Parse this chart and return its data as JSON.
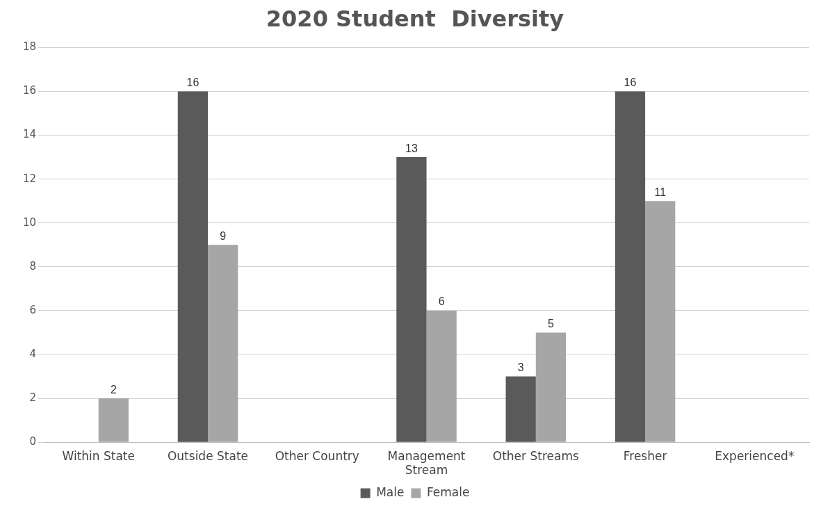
{
  "chart_data": {
    "type": "bar",
    "title": "2020 Student  Diversity",
    "categories": [
      [
        "Within State"
      ],
      [
        "Outside State"
      ],
      [
        "Other Country"
      ],
      [
        "Management",
        "Stream"
      ],
      [
        "Other Streams"
      ],
      [
        "Fresher"
      ],
      [
        "Experienced*"
      ]
    ],
    "series": [
      {
        "name": "Male",
        "color": "#5a5a5a",
        "values": [
          null,
          16,
          null,
          13,
          3,
          16,
          null
        ]
      },
      {
        "name": "Female",
        "color": "#a6a6a6",
        "values": [
          2,
          9,
          null,
          6,
          5,
          11,
          null
        ]
      }
    ],
    "ylim": [
      0,
      18
    ],
    "yticks": [
      0,
      2,
      4,
      6,
      8,
      10,
      12,
      14,
      16,
      18
    ],
    "grid": "y",
    "legend": "bottom",
    "data_labels": true
  }
}
